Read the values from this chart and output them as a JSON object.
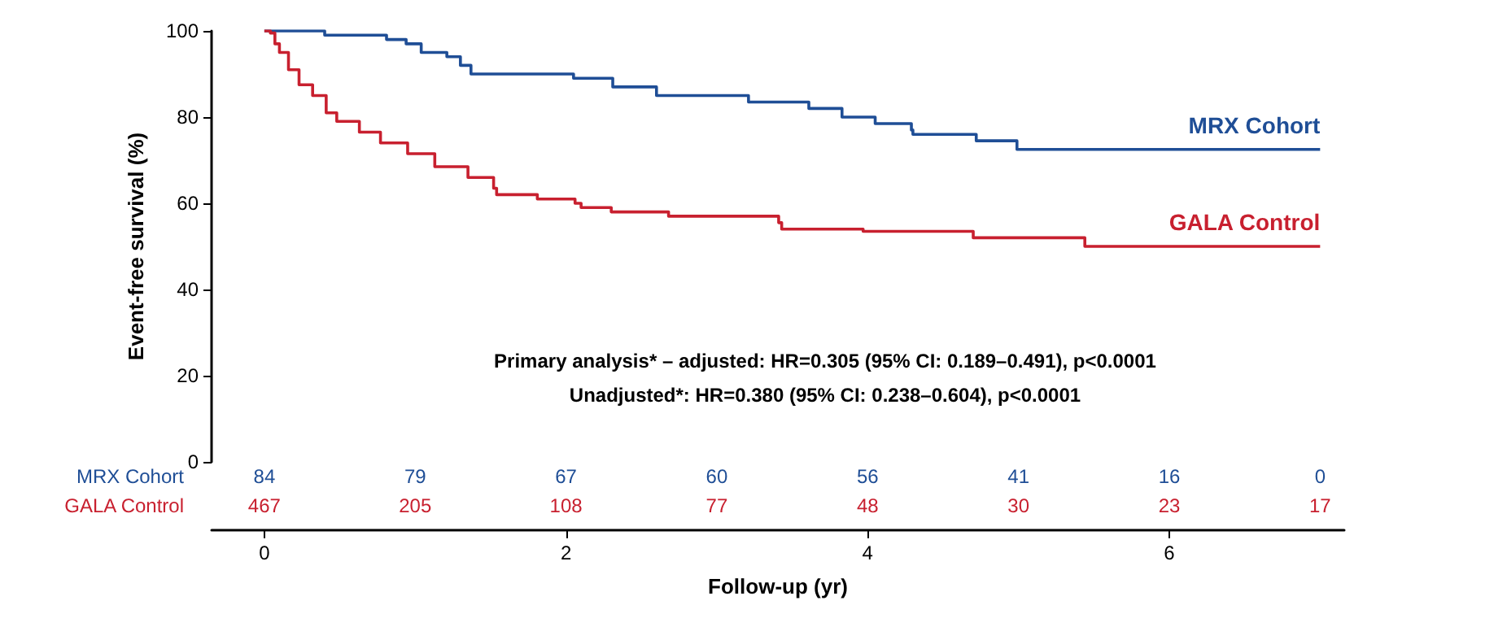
{
  "chart_data": {
    "type": "step",
    "xlabel": "Follow-up (yr)",
    "ylabel": "Event-free survival (%)",
    "xlim": [
      -0.35,
      7.16
    ],
    "xticks": [
      0,
      2,
      4,
      6
    ],
    "ylim": [
      0,
      100
    ],
    "yticks": [
      0,
      20,
      40,
      60,
      80,
      100
    ],
    "grid": false,
    "legend": false,
    "series": [
      {
        "name": "MRX Cohort",
        "color": "#1f4e96",
        "x": [
          0,
          0.4,
          0.81,
          0.94,
          1.04,
          1.21,
          1.3,
          1.37,
          2.05,
          2.31,
          2.6,
          3.21,
          3.61,
          3.83,
          4.05,
          4.29,
          4.3,
          4.72,
          4.99,
          7.0
        ],
        "values": [
          100,
          99,
          98,
          97,
          95,
          94,
          92,
          90,
          89,
          87,
          85,
          83.5,
          82,
          80,
          78.5,
          77,
          76,
          74.5,
          72.5,
          72.5
        ]
      },
      {
        "name": "GALA Control",
        "color": "#c8202f",
        "x": [
          0,
          0.04,
          0.07,
          0.1,
          0.16,
          0.23,
          0.32,
          0.41,
          0.48,
          0.63,
          0.77,
          0.95,
          1.13,
          1.35,
          1.52,
          1.54,
          1.81,
          2.06,
          2.1,
          2.3,
          2.68,
          3.41,
          3.43,
          3.97,
          4.7,
          5.44,
          7.0
        ],
        "values": [
          100,
          99.5,
          97,
          95,
          91,
          87.5,
          85,
          81,
          79,
          76.5,
          74,
          71.5,
          68.5,
          66,
          63.5,
          62,
          61,
          60,
          59,
          58,
          57,
          55.5,
          54,
          53.5,
          52,
          50,
          50
        ]
      }
    ],
    "annotations": [
      "Primary analysis* – adjusted: HR=0.305 (95% CI: 0.189–0.491), p<0.0001",
      "Unadjusted*: HR=0.380 (95% CI: 0.238–0.604), p<0.0001",
      "84",
      "79",
      "67",
      "60",
      "56",
      "41",
      "16",
      "0",
      "467",
      "205",
      "108",
      "77",
      "48",
      "30",
      "23",
      "17"
    ]
  }
}
